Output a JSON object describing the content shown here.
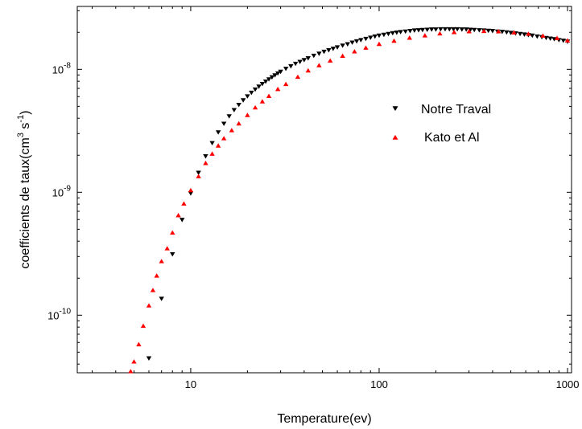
{
  "chart_data": {
    "type": "scatter",
    "title": "",
    "xlabel": "Temperature(ev)",
    "ylabel": "coefficients de taux(cm",
    "ylabel_sup1": "3",
    "ylabel_mid": " s",
    "ylabel_sup2": "-1",
    "ylabel_end": ")",
    "xscale": "log",
    "yscale": "log",
    "xlim": [
      2.5,
      1050
    ],
    "ylim": [
      3.4e-11,
      3.25e-08
    ],
    "x_ticks": [
      {
        "value": 10,
        "label": "10"
      },
      {
        "value": 100,
        "label": "100"
      },
      {
        "value": 1000,
        "label": "1000"
      }
    ],
    "y_ticks": [
      {
        "value": 1e-10,
        "base": "10",
        "exp": "-10"
      },
      {
        "value": 1e-09,
        "base": "10",
        "exp": "-9"
      },
      {
        "value": 1e-08,
        "base": "10",
        "exp": "-8"
      }
    ],
    "grid": false,
    "legend": "right",
    "series": [
      {
        "name": "Notre Traval",
        "marker": "triangle-down",
        "color": "#000000",
        "x": [
          6.0,
          7.0,
          8.0,
          9.0,
          10.0,
          11.0,
          12.0,
          13.0,
          14.0,
          15.0,
          16.0,
          17.0,
          18.0,
          19.0,
          20.0,
          21.0,
          22.0,
          23.0,
          24.0,
          25.0,
          26.0,
          27.0,
          28.0,
          29.0,
          30.0,
          32.0,
          34.0,
          36.0,
          38.0,
          40.0,
          42.0,
          45.0,
          48.0,
          51.0,
          54.0,
          57.0,
          60.0,
          64.0,
          68.0,
          72.0,
          76.0,
          80.0,
          85.0,
          90.0,
          95.0,
          100.0,
          106.0,
          112.0,
          118.0,
          124.0,
          130.0,
          138.0,
          146.0,
          154.0,
          162.0,
          170.0,
          180.0,
          190.0,
          200.0,
          212.0,
          224.0,
          236.0,
          248.0,
          260.0,
          275.0,
          290.0,
          305.0,
          320.0,
          340.0,
          360.0,
          380.0,
          400.0,
          425.0,
          450.0,
          475.0,
          500.0,
          530.0,
          560.0,
          590.0,
          620.0,
          650.0,
          690.0,
          730.0,
          770.0,
          810.0,
          850.0,
          900.0,
          950.0,
          1000.0
        ],
        "values": [
          4.45e-11,
          1.36e-10,
          3.13e-10,
          5.96e-10,
          9.79e-10,
          1.44e-09,
          1.96e-09,
          2.51e-09,
          3.07e-09,
          3.61e-09,
          4.15e-09,
          4.66e-09,
          5.14e-09,
          5.6e-09,
          6.03e-09,
          6.45e-09,
          6.85e-09,
          7.23e-09,
          7.6e-09,
          7.95e-09,
          8.29e-09,
          8.62e-09,
          8.94e-09,
          9.26e-09,
          9.56e-09,
          1.01e-08,
          1.06e-08,
          1.11e-08,
          1.15e-08,
          1.19e-08,
          1.23e-08,
          1.29e-08,
          1.34e-08,
          1.39e-08,
          1.43e-08,
          1.47e-08,
          1.51e-08,
          1.56e-08,
          1.6e-08,
          1.65e-08,
          1.69e-08,
          1.73e-08,
          1.77e-08,
          1.81e-08,
          1.85e-08,
          1.88e-08,
          1.91e-08,
          1.94e-08,
          1.97e-08,
          1.99e-08,
          2.01e-08,
          2.03e-08,
          2.05e-08,
          2.07e-08,
          2.08e-08,
          2.09e-08,
          2.1e-08,
          2.11e-08,
          2.11e-08,
          2.12e-08,
          2.12e-08,
          2.12e-08,
          2.12e-08,
          2.12e-08,
          2.11e-08,
          2.11e-08,
          2.1e-08,
          2.09e-08,
          2.08e-08,
          2.07e-08,
          2.06e-08,
          2.05e-08,
          2.03e-08,
          2.02e-08,
          2e-08,
          1.98e-08,
          1.96e-08,
          1.94e-08,
          1.92e-08,
          1.9e-08,
          1.88e-08,
          1.85e-08,
          1.83e-08,
          1.8e-08,
          1.78e-08,
          1.76e-08,
          1.73e-08,
          1.71e-08,
          1.68e-08
        ]
      },
      {
        "name": "Kato et Al",
        "marker": "triangle-up",
        "color": "#ff0000",
        "x": [
          4.8,
          5.0,
          5.3,
          5.6,
          6.0,
          6.3,
          6.6,
          7.0,
          7.5,
          8.0,
          8.6,
          9.2,
          10.0,
          11.0,
          12.0,
          13.0,
          14.0,
          15.0,
          16.5,
          18.0,
          20.0,
          22.0,
          24.0,
          26.0,
          29.0,
          32.0,
          37.0,
          42.0,
          48.0,
          55.0,
          64.0,
          74.0,
          85.0,
          100.0,
          120.0,
          145.0,
          175.0,
          210.0,
          250.0,
          300.0,
          360.0,
          430.0,
          520.0,
          620.0,
          740.0,
          880.0,
          1000.0
        ],
        "values": [
          3.5e-11,
          4.2e-11,
          5.8e-11,
          8.2e-11,
          1.2e-10,
          1.6e-10,
          2.1e-10,
          2.75e-10,
          3.5e-10,
          4.7e-10,
          6.5e-10,
          8.1e-10,
          1.04e-09,
          1.35e-09,
          1.73e-09,
          2.06e-09,
          2.4e-09,
          2.75e-09,
          3.2e-09,
          3.63e-09,
          4.25e-09,
          4.9e-09,
          5.49e-09,
          6.08e-09,
          6.92e-09,
          7.6e-09,
          8.7e-09,
          9.8e-09,
          1.08e-08,
          1.18e-08,
          1.29e-08,
          1.4e-08,
          1.5e-08,
          1.61e-08,
          1.71e-08,
          1.81e-08,
          1.89e-08,
          1.96e-08,
          2.01e-08,
          2.04e-08,
          2.05e-08,
          2.04e-08,
          2e-08,
          1.95e-08,
          1.88e-08,
          1.8e-08,
          1.72e-08
        ]
      }
    ]
  }
}
